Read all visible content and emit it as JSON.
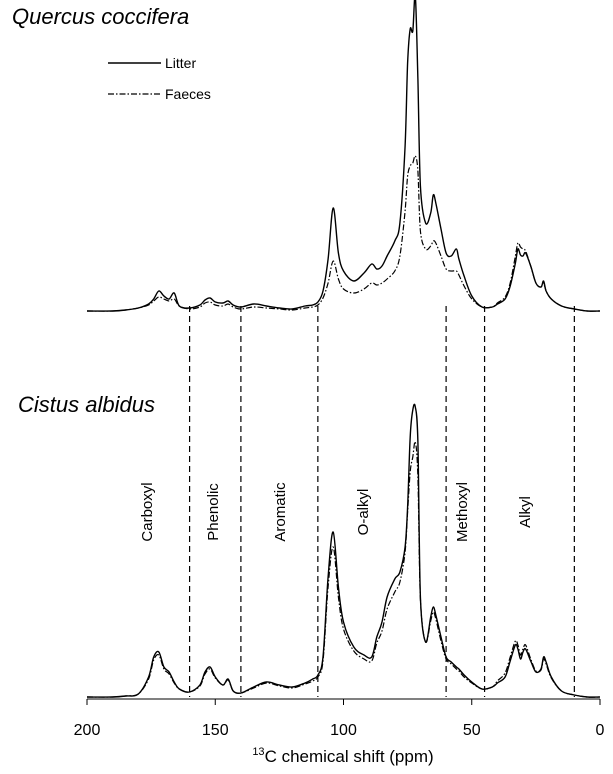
{
  "chart_data": {
    "type": "line",
    "panels": [
      {
        "title": "Quercus coccifera",
        "series": [
          {
            "name": "Litter",
            "style": "solid",
            "x": [
              200,
              190,
              185,
              180,
              176,
              174,
              172,
              170,
              168,
              166,
              164,
              160,
              156,
              154,
              152,
              150,
              147,
              145,
              143,
              140,
              135,
              130,
              125,
              120,
              115,
              112,
              110,
              108,
              106,
              104,
              102,
              100,
              96,
              92,
              89,
              87,
              85,
              83,
              80,
              78,
              76,
              75,
              74,
              73,
              72,
              71,
              70,
              68,
              66,
              65,
              64,
              62,
              60,
              58,
              56,
              55,
              53,
              50,
              46,
              42,
              40,
              37,
              35,
              33,
              32,
              31,
              30,
              29,
              27,
              25,
              23,
              22,
              21,
              19,
              15,
              10,
              5,
              0
            ],
            "y": [
              0,
              0,
              1,
              3,
              7,
              12,
              20,
              15,
              12,
              18,
              5,
              3,
              6,
              11,
              13,
              9,
              8,
              10,
              6,
              4,
              7,
              5,
              3,
              2,
              5,
              6,
              9,
              20,
              52,
              103,
              58,
              40,
              30,
              38,
              47,
              42,
              45,
              55,
              70,
              88,
              165,
              248,
              282,
              280,
              315,
              232,
              125,
              88,
              98,
              116,
              108,
              82,
              58,
              55,
              62,
              52,
              35,
              15,
              4,
              4,
              7,
              12,
              25,
              48,
              62,
              56,
              55,
              58,
              45,
              28,
              24,
              30,
              20,
              12,
              5,
              2,
              0,
              0
            ],
            "color": "#000000"
          },
          {
            "name": "Faeces",
            "style": "dash-dot",
            "x": [
              200,
              190,
              185,
              180,
              176,
              174,
              172,
              170,
              168,
              166,
              164,
              160,
              156,
              154,
              152,
              150,
              147,
              145,
              143,
              140,
              135,
              130,
              125,
              120,
              115,
              112,
              110,
              108,
              106,
              104,
              102,
              100,
              96,
              92,
              89,
              87,
              85,
              83,
              80,
              78,
              76,
              75,
              74,
              73,
              72,
              71,
              70,
              68,
              66,
              65,
              64,
              62,
              60,
              58,
              56,
              55,
              53,
              50,
              46,
              42,
              40,
              37,
              35,
              33,
              32,
              31,
              30,
              29,
              27,
              25,
              23,
              22,
              21,
              19,
              15,
              10,
              5,
              0
            ],
            "y": [
              0,
              0,
              1,
              3,
              6,
              10,
              14,
              12,
              10,
              12,
              5,
              2,
              4,
              8,
              9,
              6,
              5,
              7,
              4,
              2,
              4,
              3,
              2,
              1,
              3,
              4,
              6,
              13,
              28,
              50,
              32,
              22,
              18,
              22,
              28,
              26,
              28,
              32,
              40,
              55,
              100,
              135,
              145,
              148,
              155,
              140,
              80,
              62,
              65,
              70,
              68,
              55,
              42,
              40,
              40,
              36,
              25,
              12,
              4,
              4,
              8,
              14,
              28,
              55,
              68,
              64,
              62,
              60,
              45,
              28,
              24,
              28,
              20,
              12,
              5,
              2,
              0,
              0
            ],
            "color": "#000000"
          }
        ]
      },
      {
        "title": "Cistus albidus",
        "series": [
          {
            "name": "Litter",
            "style": "solid",
            "x": [
              200,
              190,
              185,
              180,
              176,
              174,
              172,
              170,
              168,
              166,
              164,
              160,
              156,
              154,
              152,
              150,
              147,
              145,
              143,
              140,
              135,
              130,
              125,
              120,
              115,
              112,
              110,
              108,
              106,
              104,
              102,
              100,
              96,
              92,
              89,
              87,
              85,
              83,
              80,
              78,
              76,
              75,
              74,
              73,
              72,
              71,
              70,
              68,
              66,
              65,
              64,
              62,
              60,
              58,
              56,
              55,
              53,
              50,
              46,
              42,
              40,
              37,
              35,
              33,
              32,
              31,
              30,
              29,
              27,
              25,
              23,
              22,
              21,
              19,
              15,
              10,
              5,
              0
            ],
            "y": [
              0,
              0,
              1,
              3,
              20,
              40,
              45,
              30,
              25,
              15,
              8,
              5,
              12,
              25,
              30,
              20,
              12,
              18,
              6,
              4,
              10,
              15,
              12,
              10,
              14,
              18,
              22,
              40,
              120,
              165,
              110,
              75,
              50,
              42,
              40,
              60,
              75,
              100,
              118,
              125,
              150,
              190,
              260,
              287,
              290,
              255,
              100,
              55,
              80,
              90,
              82,
              60,
              40,
              35,
              30,
              28,
              22,
              15,
              8,
              10,
              14,
              20,
              36,
              52,
              48,
              38,
              45,
              48,
              36,
              25,
              28,
              40,
              35,
              20,
              6,
              2,
              0,
              0
            ],
            "color": "#000000"
          },
          {
            "name": "Faeces",
            "style": "dash-dot",
            "x": [
              200,
              190,
              185,
              180,
              176,
              174,
              172,
              170,
              168,
              166,
              164,
              160,
              156,
              154,
              152,
              150,
              147,
              145,
              143,
              140,
              135,
              130,
              125,
              120,
              115,
              112,
              110,
              108,
              106,
              104,
              102,
              100,
              96,
              92,
              89,
              87,
              85,
              83,
              80,
              78,
              76,
              75,
              74,
              73,
              72,
              71,
              70,
              68,
              66,
              65,
              64,
              62,
              60,
              58,
              56,
              55,
              53,
              50,
              46,
              42,
              40,
              37,
              35,
              33,
              32,
              31,
              30,
              29,
              27,
              25,
              23,
              22,
              21,
              19,
              15,
              10,
              5,
              0
            ],
            "y": [
              0,
              0,
              1,
              3,
              18,
              37,
              42,
              28,
              23,
              14,
              8,
              5,
              11,
              23,
              28,
              19,
              12,
              17,
              6,
              4,
              9,
              14,
              11,
              9,
              13,
              16,
              20,
              36,
              110,
              150,
              100,
              68,
              46,
              38,
              36,
              54,
              66,
              88,
              105,
              115,
              145,
              185,
              225,
              240,
              255,
              220,
              98,
              55,
              76,
              85,
              78,
              56,
              38,
              33,
              28,
              26,
              20,
              14,
              8,
              10,
              16,
              24,
              40,
              56,
              52,
              42,
              48,
              52,
              38,
              26,
              27,
              38,
              33,
              19,
              6,
              2,
              0,
              0
            ],
            "color": "#000000"
          }
        ]
      }
    ],
    "regions": [
      {
        "label": "Carboxyl"
      },
      {
        "label": "Phenolic"
      },
      {
        "label": "Aromatic"
      },
      {
        "label": "O-alkyl"
      },
      {
        "label": "Methoxyl"
      },
      {
        "label": "Alkyl"
      }
    ],
    "boundaries": [
      160,
      140,
      110,
      60,
      45,
      10
    ],
    "xlim": [
      200,
      0
    ],
    "x_reversed": true,
    "xticks": [
      {
        "value": 200,
        "label": "200"
      },
      {
        "value": 150,
        "label": "150"
      },
      {
        "value": 100,
        "label": "100"
      },
      {
        "value": 50,
        "label": "50"
      },
      {
        "value": 0,
        "label": "0"
      }
    ],
    "xlabel": {
      "sup": "13",
      "text": "C chemical shift (ppm)"
    },
    "legend": [
      {
        "label": "Litter",
        "style": "solid"
      },
      {
        "label": "Faeces",
        "style": "dash-dot"
      }
    ],
    "grid": false
  }
}
